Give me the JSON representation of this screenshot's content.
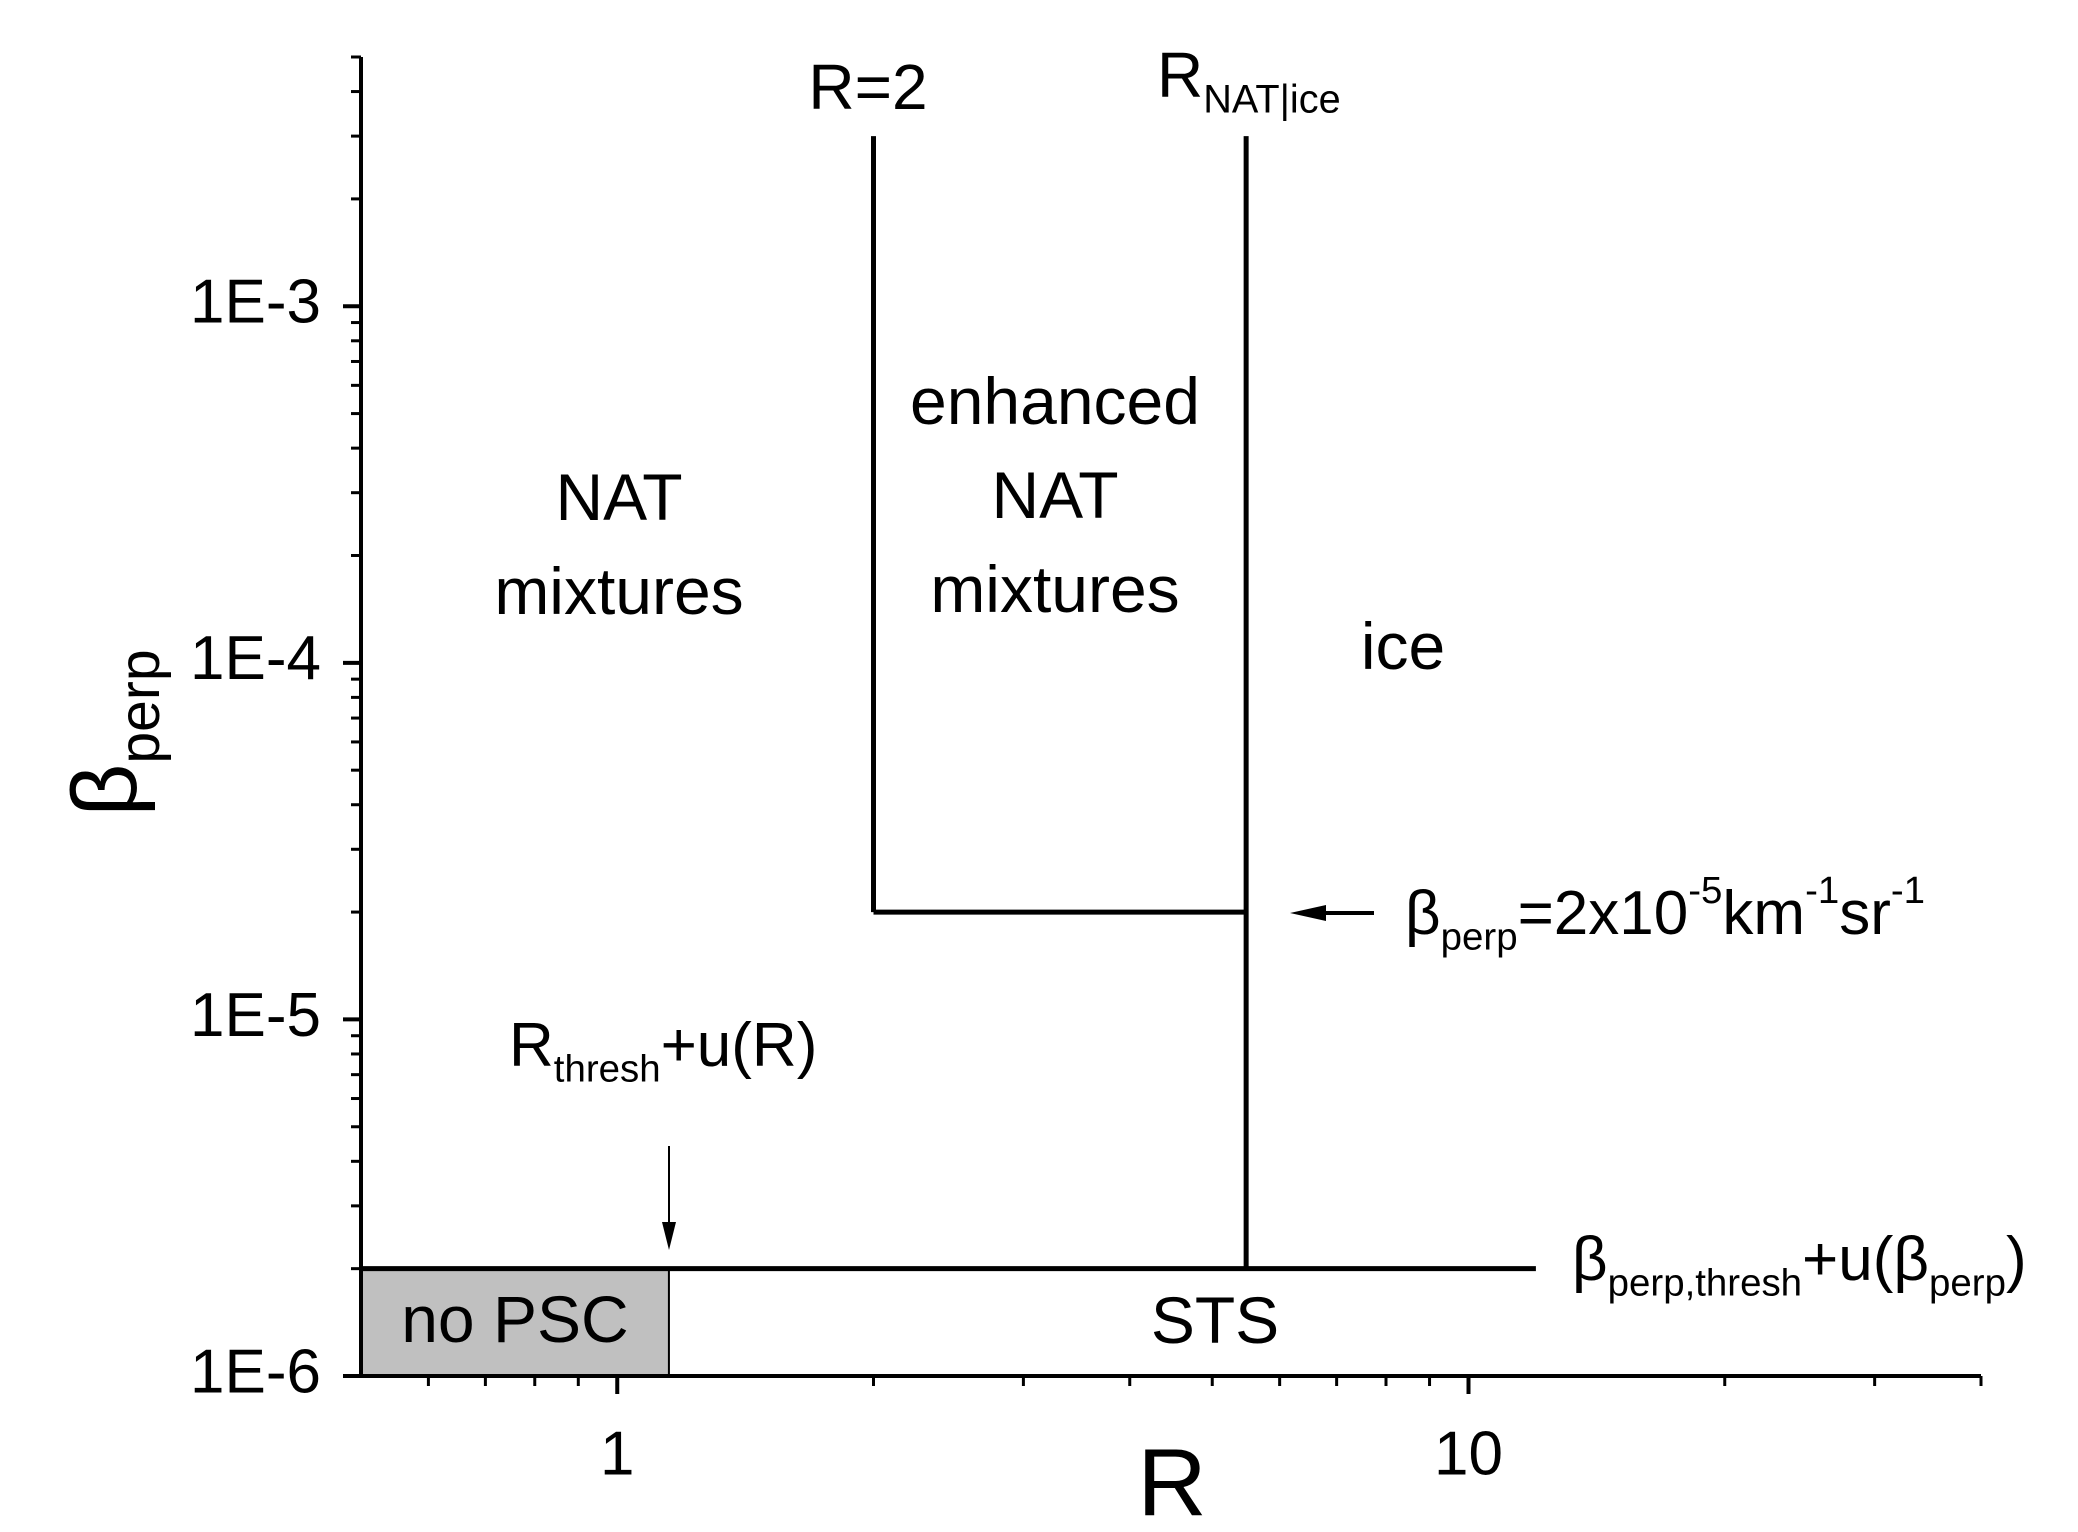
{
  "chart_data": {
    "type": "line",
    "xscale": "log",
    "yscale": "log",
    "xlim": [
      0.5,
      40
    ],
    "ylim": [
      1e-06,
      0.005
    ],
    "xticks": [
      1,
      10
    ],
    "yticks": [
      {
        "value": 1e-06,
        "label": "1E-6"
      },
      {
        "value": 1e-05,
        "label": "1E-5"
      },
      {
        "value": 0.0001,
        "label": "1E-4"
      },
      {
        "value": 0.001,
        "label": "1E-3"
      }
    ],
    "xminorticks": [
      0.6,
      0.7,
      0.8,
      0.9,
      2,
      3,
      4,
      5,
      6,
      7,
      8,
      9,
      20,
      30,
      40
    ],
    "yminorticks": [
      2e-06,
      3e-06,
      4e-06,
      5e-06,
      6e-06,
      7e-06,
      8e-06,
      9e-06,
      2e-05,
      3e-05,
      4e-05,
      5e-05,
      6e-05,
      7e-05,
      8e-05,
      9e-05,
      0.0002,
      0.0003,
      0.0004,
      0.0005,
      0.0006,
      0.0007,
      0.0008,
      0.0009,
      0.002,
      0.003,
      0.004,
      0.005
    ],
    "xlabel": "R",
    "ylabel": [
      {
        "text": "β"
      },
      {
        "text": "perp",
        "sub": true
      }
    ],
    "color": "#000000",
    "lines": [
      {
        "x": [
          2,
          2
        ],
        "y": [
          2e-05,
          0.003
        ]
      },
      {
        "x": [
          5.48,
          5.48
        ],
        "y": [
          2e-06,
          0.003
        ]
      },
      {
        "x": [
          2,
          5.48
        ],
        "y": [
          2e-05,
          2e-05
        ]
      },
      {
        "x": [
          0.5,
          12
        ],
        "y": [
          2e-06,
          2e-06
        ]
      }
    ],
    "regions": [
      {
        "name": "no PSC",
        "x": [
          0.5,
          1.15
        ],
        "y": [
          1e-06,
          2e-06
        ],
        "color": "#c0c0c0"
      }
    ],
    "annotations": [
      {
        "lines": [
          [
            {
              "text": "R=2"
            }
          ]
        ]
      },
      {
        "lines": [
          [
            {
              "text": "R"
            },
            {
              "text": "NAT|ice",
              "sub": true
            }
          ]
        ]
      },
      {
        "lines": [
          [
            {
              "text": "NAT"
            }
          ],
          [
            {
              "text": "mixtures"
            }
          ]
        ]
      },
      {
        "lines": [
          [
            {
              "text": "enhanced"
            }
          ],
          [
            {
              "text": "NAT"
            }
          ],
          [
            {
              "text": "mixtures"
            }
          ]
        ]
      },
      {
        "lines": [
          [
            {
              "text": "ice"
            }
          ]
        ]
      },
      {
        "lines": [
          [
            {
              "text": "R"
            },
            {
              "text": "thresh",
              "sub": true
            },
            {
              "text": "+u(R)"
            }
          ]
        ]
      },
      {
        "lines": [
          [
            {
              "text": "β"
            },
            {
              "text": "perp",
              "sub": true
            },
            {
              "text": "=2x10"
            },
            {
              "text": "-5",
              "sup": true
            },
            {
              "text": "km"
            },
            {
              "text": "-1",
              "sup": true
            },
            {
              "text": "sr"
            },
            {
              "text": "-1",
              "sup": true
            }
          ]
        ]
      },
      {
        "lines": [
          [
            {
              "text": "β"
            },
            {
              "text": "perp,thresh",
              "sub": true
            },
            {
              "text": "+u(β"
            },
            {
              "text": "perp",
              "sub": true
            },
            {
              "text": ")"
            }
          ]
        ]
      },
      {
        "lines": [
          [
            {
              "text": "STS"
            }
          ]
        ]
      }
    ]
  }
}
